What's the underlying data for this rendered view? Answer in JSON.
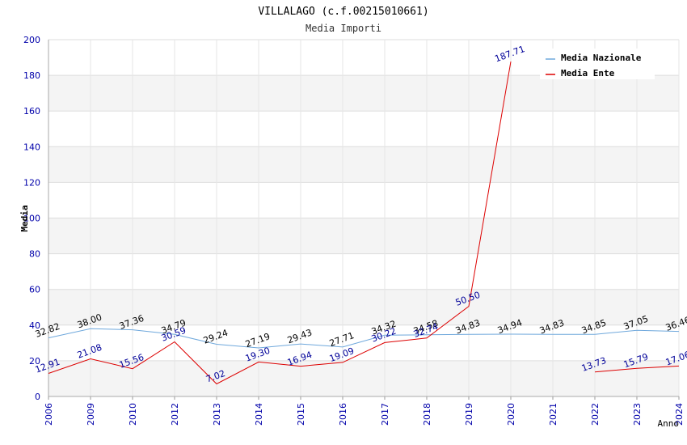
{
  "chart_data": {
    "type": "line",
    "title": "VILLALAGO (c.f.00215010661)",
    "subtitle": "Media Importi",
    "xlabel": "Anno",
    "ylabel": "Media",
    "ylim": [
      0,
      200
    ],
    "yticks": [
      "0",
      "20",
      "40",
      "60",
      "80",
      "100",
      "120",
      "140",
      "160",
      "180",
      "200"
    ],
    "categories": [
      "2006",
      "2009",
      "2010",
      "2012",
      "2013",
      "2014",
      "2015",
      "2016",
      "2017",
      "2018",
      "2019",
      "2020",
      "2021",
      "2022",
      "2023",
      "2024"
    ],
    "grid": true,
    "legend_position": "top-right",
    "series": [
      {
        "name": "Media Nazionale",
        "color": "#6fa8dc",
        "label_color": "#000000",
        "values": [
          32.82,
          38.0,
          37.36,
          34.79,
          29.24,
          27.19,
          29.43,
          27.71,
          34.32,
          34.58,
          34.83,
          34.94,
          34.83,
          34.85,
          37.05,
          36.46
        ],
        "labels": [
          "32.82",
          "38.00",
          "37.36",
          "34.79",
          "29.24",
          "27.19",
          "29.43",
          "27.71",
          "34.32",
          "34.58",
          "34.83",
          "34.94",
          "34.83",
          "34.85",
          "37.05",
          "36.46"
        ]
      },
      {
        "name": "Media Ente",
        "color": "#dd0000",
        "label_color": "#000099",
        "values": [
          12.91,
          21.08,
          15.56,
          30.59,
          7.02,
          19.3,
          16.94,
          19.09,
          30.22,
          32.74,
          50.5,
          187.71,
          null,
          13.73,
          15.79,
          17.06
        ],
        "labels": [
          "12.91",
          "21.08",
          "15.56",
          "30.59",
          "7.02",
          "19.30",
          "16.94",
          "19.09",
          "30.22",
          "32.74",
          "50.50",
          "187.71",
          null,
          "13.73",
          "15.79",
          "17.06"
        ]
      }
    ]
  }
}
